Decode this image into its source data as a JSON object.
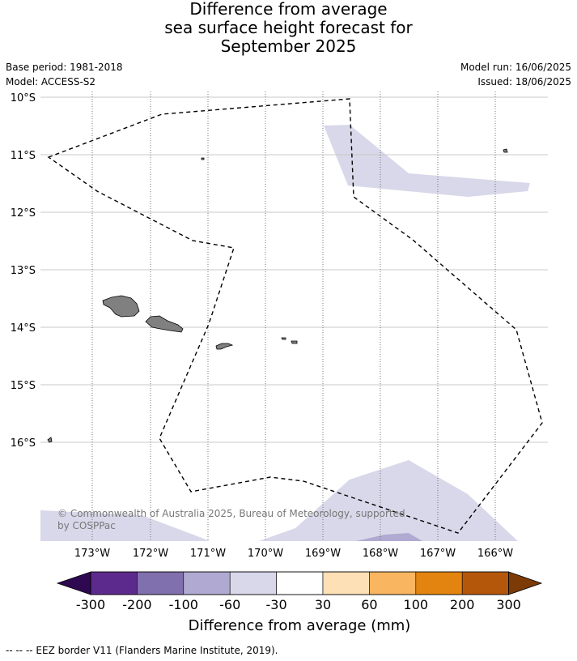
{
  "title": {
    "line1": "Difference from average",
    "line2": "sea surface height forecast for",
    "line3": "September 2025"
  },
  "meta": {
    "base_period": "Base period: 1981-2018",
    "model": "Model: ACCESS-S2",
    "model_run": "Model run: 16/06/2025",
    "issued": "Issued: 18/06/2025"
  },
  "map": {
    "lat_labels": [
      "10°S",
      "11°S",
      "12°S",
      "13°S",
      "14°S",
      "15°S",
      "16°S"
    ],
    "lon_labels": [
      "173°W",
      "172°W",
      "171°W",
      "170°W",
      "169°W",
      "168°W",
      "167°W",
      "166°W"
    ],
    "copyright_line1": "© Commonwealth of Australia 2025, Bureau of Meteorology, supported",
    "copyright_line2": "by COSPPac",
    "land_color": "#808080",
    "anomaly_fill_color": "#d8d8ea",
    "anomaly_dark_color": "#b0aad2"
  },
  "colorbar": {
    "ticks": [
      "-300",
      "-200",
      "-100",
      "-60",
      "-30",
      "30",
      "60",
      "100",
      "200",
      "300"
    ],
    "colors": [
      "#2e0851",
      "#5c2a8c",
      "#8070ad",
      "#b0aad2",
      "#d8d8ea",
      "#ffffff",
      "#fde0b5",
      "#f9b55f",
      "#e2840f",
      "#b4570a",
      "#7c3a06"
    ],
    "label": "Difference from average (mm)"
  },
  "footer": {
    "legend_text": "-- -- -- EEZ border V11 (Flanders Marine Institute, 2019)."
  }
}
